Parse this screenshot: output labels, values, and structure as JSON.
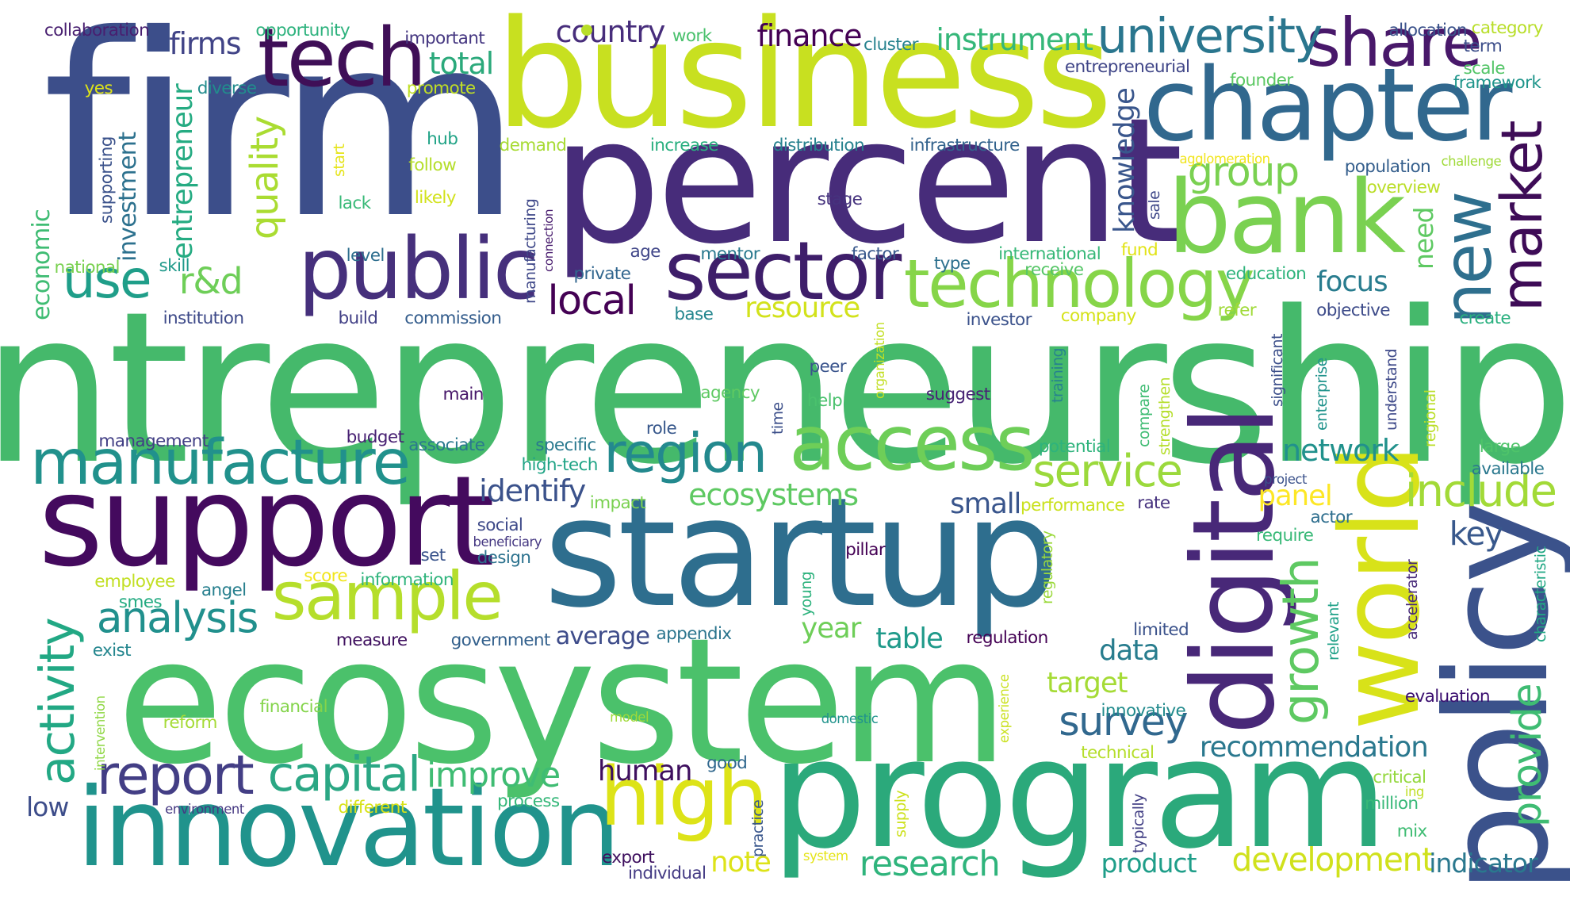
{
  "words": [
    {
      "text": "entrepreneurship",
      "color": "#45b96b"
    },
    {
      "text": "firm",
      "color": "#3c4e8a"
    },
    {
      "text": "percent",
      "color": "#472c7a"
    },
    {
      "text": "business",
      "color": "#c8e020"
    },
    {
      "text": "ecosystem",
      "color": "#4bc16b"
    },
    {
      "text": "program",
      "color": "#2ba97b"
    },
    {
      "text": "startup",
      "color": "#2e6e8e"
    },
    {
      "text": "policy",
      "color": "#3b528b"
    },
    {
      "text": "support",
      "color": "#440a5e"
    },
    {
      "text": "innovation",
      "color": "#20938c"
    },
    {
      "text": "digital",
      "color": "#482878"
    },
    {
      "text": "world",
      "color": "#d8e219"
    },
    {
      "text": "chapter",
      "color": "#31688e"
    },
    {
      "text": "bank",
      "color": "#7ad151"
    },
    {
      "text": "public",
      "color": "#46307c"
    },
    {
      "text": "sector",
      "color": "#3e1e6a"
    },
    {
      "text": "tech",
      "color": "#3f0f57"
    },
    {
      "text": "access",
      "color": "#6ece58"
    },
    {
      "text": "manufacture",
      "color": "#21918c"
    },
    {
      "text": "sample",
      "color": "#b5de2b"
    },
    {
      "text": "technology",
      "color": "#86d549"
    },
    {
      "text": "high",
      "color": "#dde318"
    },
    {
      "text": "share",
      "color": "#48186a"
    },
    {
      "text": "university",
      "color": "#2a768e"
    },
    {
      "text": "market",
      "color": "#3e0c57"
    },
    {
      "text": "new",
      "color": "#2e6f8e"
    },
    {
      "text": "region",
      "color": "#23898e"
    },
    {
      "text": "report",
      "color": "#433e85"
    },
    {
      "text": "growth",
      "color": "#5ec962"
    },
    {
      "text": "activity",
      "color": "#22a884"
    },
    {
      "text": "capital",
      "color": "#2ba784"
    },
    {
      "text": "service",
      "color": "#9bd93c"
    },
    {
      "text": "include",
      "color": "#a2da37"
    },
    {
      "text": "analysis",
      "color": "#21908d"
    },
    {
      "text": "use",
      "color": "#1f9e89"
    },
    {
      "text": "survey",
      "color": "#31688e"
    },
    {
      "text": "group",
      "color": "#7ad151"
    },
    {
      "text": "local",
      "color": "#440154"
    },
    {
      "text": "provide",
      "color": "#3fbc73"
    },
    {
      "text": "improve",
      "color": "#3fbc73"
    },
    {
      "text": "research",
      "color": "#2fb47c"
    },
    {
      "text": "development",
      "color": "#d0e11c"
    },
    {
      "text": "quality",
      "color": "#aadc32"
    },
    {
      "text": "ecosystems",
      "color": "#5ec962"
    },
    {
      "text": "finance",
      "color": "#440154"
    },
    {
      "text": "country",
      "color": "#472d7b"
    },
    {
      "text": "instrument",
      "color": "#35b779"
    },
    {
      "text": "firms",
      "color": "#414487"
    },
    {
      "text": "total",
      "color": "#2ba97b"
    },
    {
      "text": "identify",
      "color": "#3b528b"
    },
    {
      "text": "recommendation",
      "color": "#2a788e"
    },
    {
      "text": "network",
      "color": "#21918c"
    },
    {
      "text": "focus",
      "color": "#287c8e"
    },
    {
      "text": "knowledge",
      "color": "#39568c"
    },
    {
      "text": "r&d",
      "color": "#6ece58"
    },
    {
      "text": "entrepreneur",
      "color": "#25ab82"
    },
    {
      "text": "investment",
      "color": "#2c718e"
    },
    {
      "text": "economic",
      "color": "#3fbc73"
    },
    {
      "text": "resource",
      "color": "#d2e21b"
    },
    {
      "text": "small",
      "color": "#39558c"
    },
    {
      "text": "panel",
      "color": "#fde725"
    },
    {
      "text": "key",
      "color": "#38588c"
    },
    {
      "text": "need",
      "color": "#5ec962"
    },
    {
      "text": "human",
      "color": "#3e0f5e"
    },
    {
      "text": "year",
      "color": "#6ece58"
    },
    {
      "text": "table",
      "color": "#1f9a8a"
    },
    {
      "text": "data",
      "color": "#287d8e"
    },
    {
      "text": "target",
      "color": "#a5db36"
    },
    {
      "text": "average",
      "color": "#3e4c8a"
    },
    {
      "text": "note",
      "color": "#dde318"
    },
    {
      "text": "product",
      "color": "#1f9e89"
    },
    {
      "text": "indicator",
      "color": "#2a788e"
    },
    {
      "text": "low",
      "color": "#3d4d8a"
    },
    {
      "text": "collaboration",
      "color": "#481f70"
    },
    {
      "text": "opportunity",
      "color": "#2db27d"
    },
    {
      "text": "important",
      "color": "#453781"
    },
    {
      "text": "work",
      "color": "#4ac16d"
    },
    {
      "text": "cluster",
      "color": "#26828e"
    },
    {
      "text": "entrepreneurial",
      "color": "#404688"
    },
    {
      "text": "allocation",
      "color": "#3b528b"
    },
    {
      "text": "category",
      "color": "#b8de29"
    },
    {
      "text": "term",
      "color": "#3d4e8a"
    },
    {
      "text": "scale",
      "color": "#54c568"
    },
    {
      "text": "framework",
      "color": "#1f958b"
    },
    {
      "text": "founder",
      "color": "#5cc863"
    },
    {
      "text": "diverse",
      "color": "#228c8d"
    },
    {
      "text": "promote",
      "color": "#c0df25"
    },
    {
      "text": "yes",
      "color": "#dde318"
    },
    {
      "text": "supporting",
      "color": "#3b528b"
    },
    {
      "text": "hub",
      "color": "#20a386"
    },
    {
      "text": "follow",
      "color": "#b5de2b"
    },
    {
      "text": "start",
      "color": "#e5e419"
    },
    {
      "text": "lack",
      "color": "#38b977"
    },
    {
      "text": "likely",
      "color": "#d2e21b"
    },
    {
      "text": "demand",
      "color": "#a8db34"
    },
    {
      "text": "increase",
      "color": "#29af7f"
    },
    {
      "text": "distribution",
      "color": "#26818e"
    },
    {
      "text": "infrastructure",
      "color": "#33638d"
    },
    {
      "text": "agglomeration",
      "color": "#f1e51d"
    },
    {
      "text": "population",
      "color": "#355f8d"
    },
    {
      "text": "challenge",
      "color": "#a0da39"
    },
    {
      "text": "overview",
      "color": "#bade28"
    },
    {
      "text": "manufacturing",
      "color": "#3f4889"
    },
    {
      "text": "connection",
      "color": "#481c6e"
    },
    {
      "text": "stage",
      "color": "#46337e"
    },
    {
      "text": "sale",
      "color": "#3f4889"
    },
    {
      "text": "level",
      "color": "#2e6e8e"
    },
    {
      "text": "age",
      "color": "#404688"
    },
    {
      "text": "mentor",
      "color": "#29798e"
    },
    {
      "text": "factor",
      "color": "#38588c"
    },
    {
      "text": "international",
      "color": "#37b878"
    },
    {
      "text": "fund",
      "color": "#e2e418"
    },
    {
      "text": "national",
      "color": "#7ad151"
    },
    {
      "text": "skill",
      "color": "#1f998a"
    },
    {
      "text": "private",
      "color": "#31668e"
    },
    {
      "text": "type",
      "color": "#2d708e"
    },
    {
      "text": "receive",
      "color": "#56c667"
    },
    {
      "text": "education",
      "color": "#2fb47c"
    },
    {
      "text": "institution",
      "color": "#3e4a89"
    },
    {
      "text": "build",
      "color": "#424086"
    },
    {
      "text": "commission",
      "color": "#355e8d"
    },
    {
      "text": "base",
      "color": "#24868e"
    },
    {
      "text": "organization",
      "color": "#c2df23"
    },
    {
      "text": "investor",
      "color": "#3b528b"
    },
    {
      "text": "company",
      "color": "#d5e21a"
    },
    {
      "text": "refer",
      "color": "#a0da39"
    },
    {
      "text": "significant",
      "color": "#3c4f8a"
    },
    {
      "text": "objective",
      "color": "#3e4c8a"
    },
    {
      "text": "create",
      "color": "#2ab07f"
    },
    {
      "text": "main",
      "color": "#48186a"
    },
    {
      "text": "agency",
      "color": "#5ec962"
    },
    {
      "text": "peer",
      "color": "#3a548c"
    },
    {
      "text": "help",
      "color": "#4ac16d"
    },
    {
      "text": "time",
      "color": "#3c4f8a"
    },
    {
      "text": "suggest",
      "color": "#482475"
    },
    {
      "text": "training",
      "color": "#26828e"
    },
    {
      "text": "compare",
      "color": "#3fbc73"
    },
    {
      "text": "strengthen",
      "color": "#b5de2b"
    },
    {
      "text": "enterprise",
      "color": "#20938c"
    },
    {
      "text": "understand",
      "color": "#3e4989"
    },
    {
      "text": "regional",
      "color": "#bade28"
    },
    {
      "text": "management",
      "color": "#423f85"
    },
    {
      "text": "budget",
      "color": "#482173"
    },
    {
      "text": "associate",
      "color": "#2a788e"
    },
    {
      "text": "specific",
      "color": "#29798e"
    },
    {
      "text": "role",
      "color": "#38588c"
    },
    {
      "text": "potential",
      "color": "#2eb37c"
    },
    {
      "text": "large",
      "color": "#4fc46a"
    },
    {
      "text": "available",
      "color": "#2a788e"
    },
    {
      "text": "high-tech",
      "color": "#20a486"
    },
    {
      "text": "impact",
      "color": "#7ad151"
    },
    {
      "text": "performance",
      "color": "#cae11f"
    },
    {
      "text": "rate",
      "color": "#46327e"
    },
    {
      "text": "project",
      "color": "#3b528b"
    },
    {
      "text": "actor",
      "color": "#2e6e8e"
    },
    {
      "text": "social",
      "color": "#3e4a89"
    },
    {
      "text": "beneficiary",
      "color": "#453882"
    },
    {
      "text": "design",
      "color": "#2c728e"
    },
    {
      "text": "require",
      "color": "#38b977"
    },
    {
      "text": "set",
      "color": "#3a548c"
    },
    {
      "text": "regulatory",
      "color": "#9bd93c"
    },
    {
      "text": "pillar",
      "color": "#440154"
    },
    {
      "text": "characteristic",
      "color": "#22a884"
    },
    {
      "text": "accelerator",
      "color": "#472a7a"
    },
    {
      "text": "relevant",
      "color": "#1fa188"
    },
    {
      "text": "employee",
      "color": "#c2df23"
    },
    {
      "text": "score",
      "color": "#f1e51d"
    },
    {
      "text": "information",
      "color": "#2fb47c"
    },
    {
      "text": "angel",
      "color": "#277f8e"
    },
    {
      "text": "smes",
      "color": "#25ab82"
    },
    {
      "text": "young",
      "color": "#2db27d"
    },
    {
      "text": "measure",
      "color": "#3e0f5e"
    },
    {
      "text": "government",
      "color": "#34618d"
    },
    {
      "text": "appendix",
      "color": "#2b758e"
    },
    {
      "text": "regulation",
      "color": "#440154"
    },
    {
      "text": "limited",
      "color": "#3b528b"
    },
    {
      "text": "exist",
      "color": "#24868e"
    },
    {
      "text": "evaluation",
      "color": "#3b0f70"
    },
    {
      "text": "intervention",
      "color": "#8fd744"
    },
    {
      "text": "financial",
      "color": "#84d44b"
    },
    {
      "text": "experience",
      "color": "#cae11f"
    },
    {
      "text": "innovative",
      "color": "#228b8d"
    },
    {
      "text": "technical",
      "color": "#b5de2b"
    },
    {
      "text": "reform",
      "color": "#a5db36"
    },
    {
      "text": "model",
      "color": "#a0da39"
    },
    {
      "text": "domestic",
      "color": "#20938c"
    },
    {
      "text": "good",
      "color": "#31688e"
    },
    {
      "text": "critical",
      "color": "#95d840"
    },
    {
      "text": "ing",
      "color": "#c0df25"
    },
    {
      "text": "million",
      "color": "#37b878"
    },
    {
      "text": "environment",
      "color": "#453882"
    },
    {
      "text": "different",
      "color": "#d8e219"
    },
    {
      "text": "process",
      "color": "#35b779"
    },
    {
      "text": "supply",
      "color": "#cde11d"
    },
    {
      "text": "typically",
      "color": "#423f85"
    },
    {
      "text": "mix",
      "color": "#3fbc73"
    },
    {
      "text": "practice",
      "color": "#39568c"
    },
    {
      "text": "system",
      "color": "#e5e419"
    },
    {
      "text": "export",
      "color": "#3e0f5e"
    },
    {
      "text": "individual",
      "color": "#443b84"
    }
  ]
}
